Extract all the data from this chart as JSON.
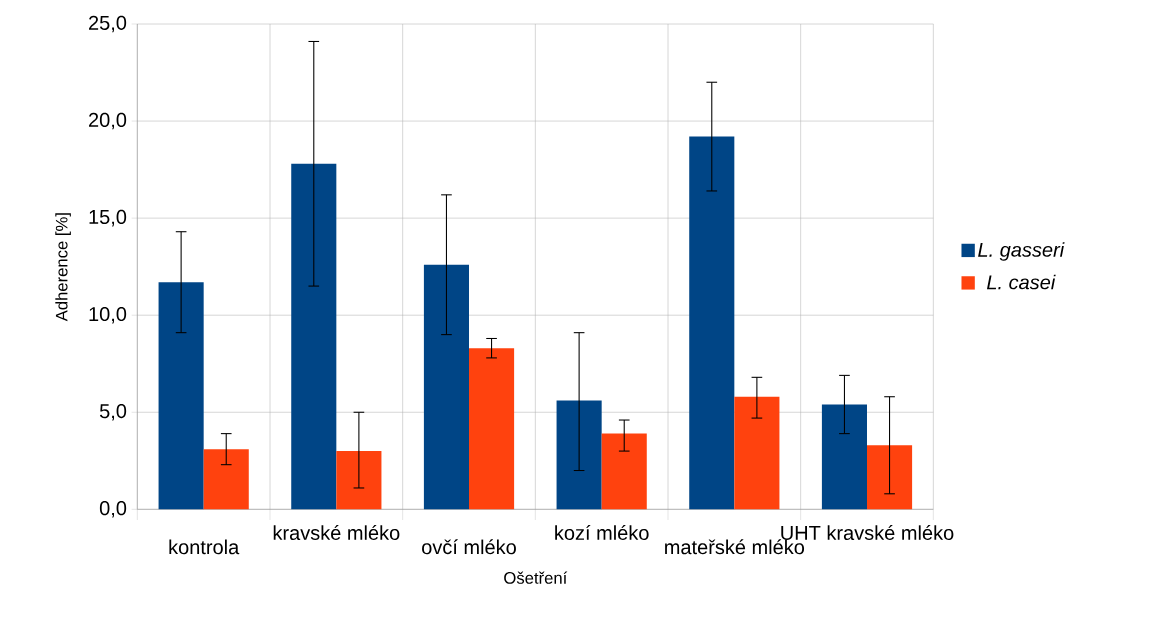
{
  "chart_data": {
    "type": "bar",
    "xlabel": "Ošetření",
    "ylabel": "Adherence [%]",
    "categories": [
      "kontrola",
      "kravské mléko",
      "ovčí mléko",
      "kozí mléko",
      "mateřské mléko",
      "UHT kravské mléko"
    ],
    "series": [
      {
        "name": "L. gasseri",
        "color": "#004586",
        "values": [
          11.7,
          17.8,
          12.6,
          5.6,
          19.2,
          5.4
        ],
        "errors": [
          [
            9.1,
            14.3
          ],
          [
            11.5,
            24.1
          ],
          [
            9.0,
            16.2
          ],
          [
            2.0,
            9.1
          ],
          [
            16.4,
            22.0
          ],
          [
            3.9,
            6.9
          ]
        ]
      },
      {
        "name": "L. casei",
        "color": "#ff420e",
        "values": [
          3.1,
          3.0,
          8.3,
          3.9,
          5.8,
          3.3
        ],
        "errors": [
          [
            2.3,
            3.9
          ],
          [
            1.1,
            5.0
          ],
          [
            7.8,
            8.8
          ],
          [
            3.0,
            4.6
          ],
          [
            4.7,
            6.8
          ],
          [
            0.8,
            5.8
          ]
        ]
      }
    ],
    "ylim": [
      0,
      25
    ],
    "yticks": [
      {
        "value": 0,
        "label": "0,0"
      },
      {
        "value": 5,
        "label": "5,0"
      },
      {
        "value": 10,
        "label": "10,0"
      },
      {
        "value": 15,
        "label": "15,0"
      },
      {
        "value": 20,
        "label": "20,0"
      },
      {
        "value": 25,
        "label": "25,0"
      }
    ],
    "grid": true,
    "legend": "right"
  }
}
